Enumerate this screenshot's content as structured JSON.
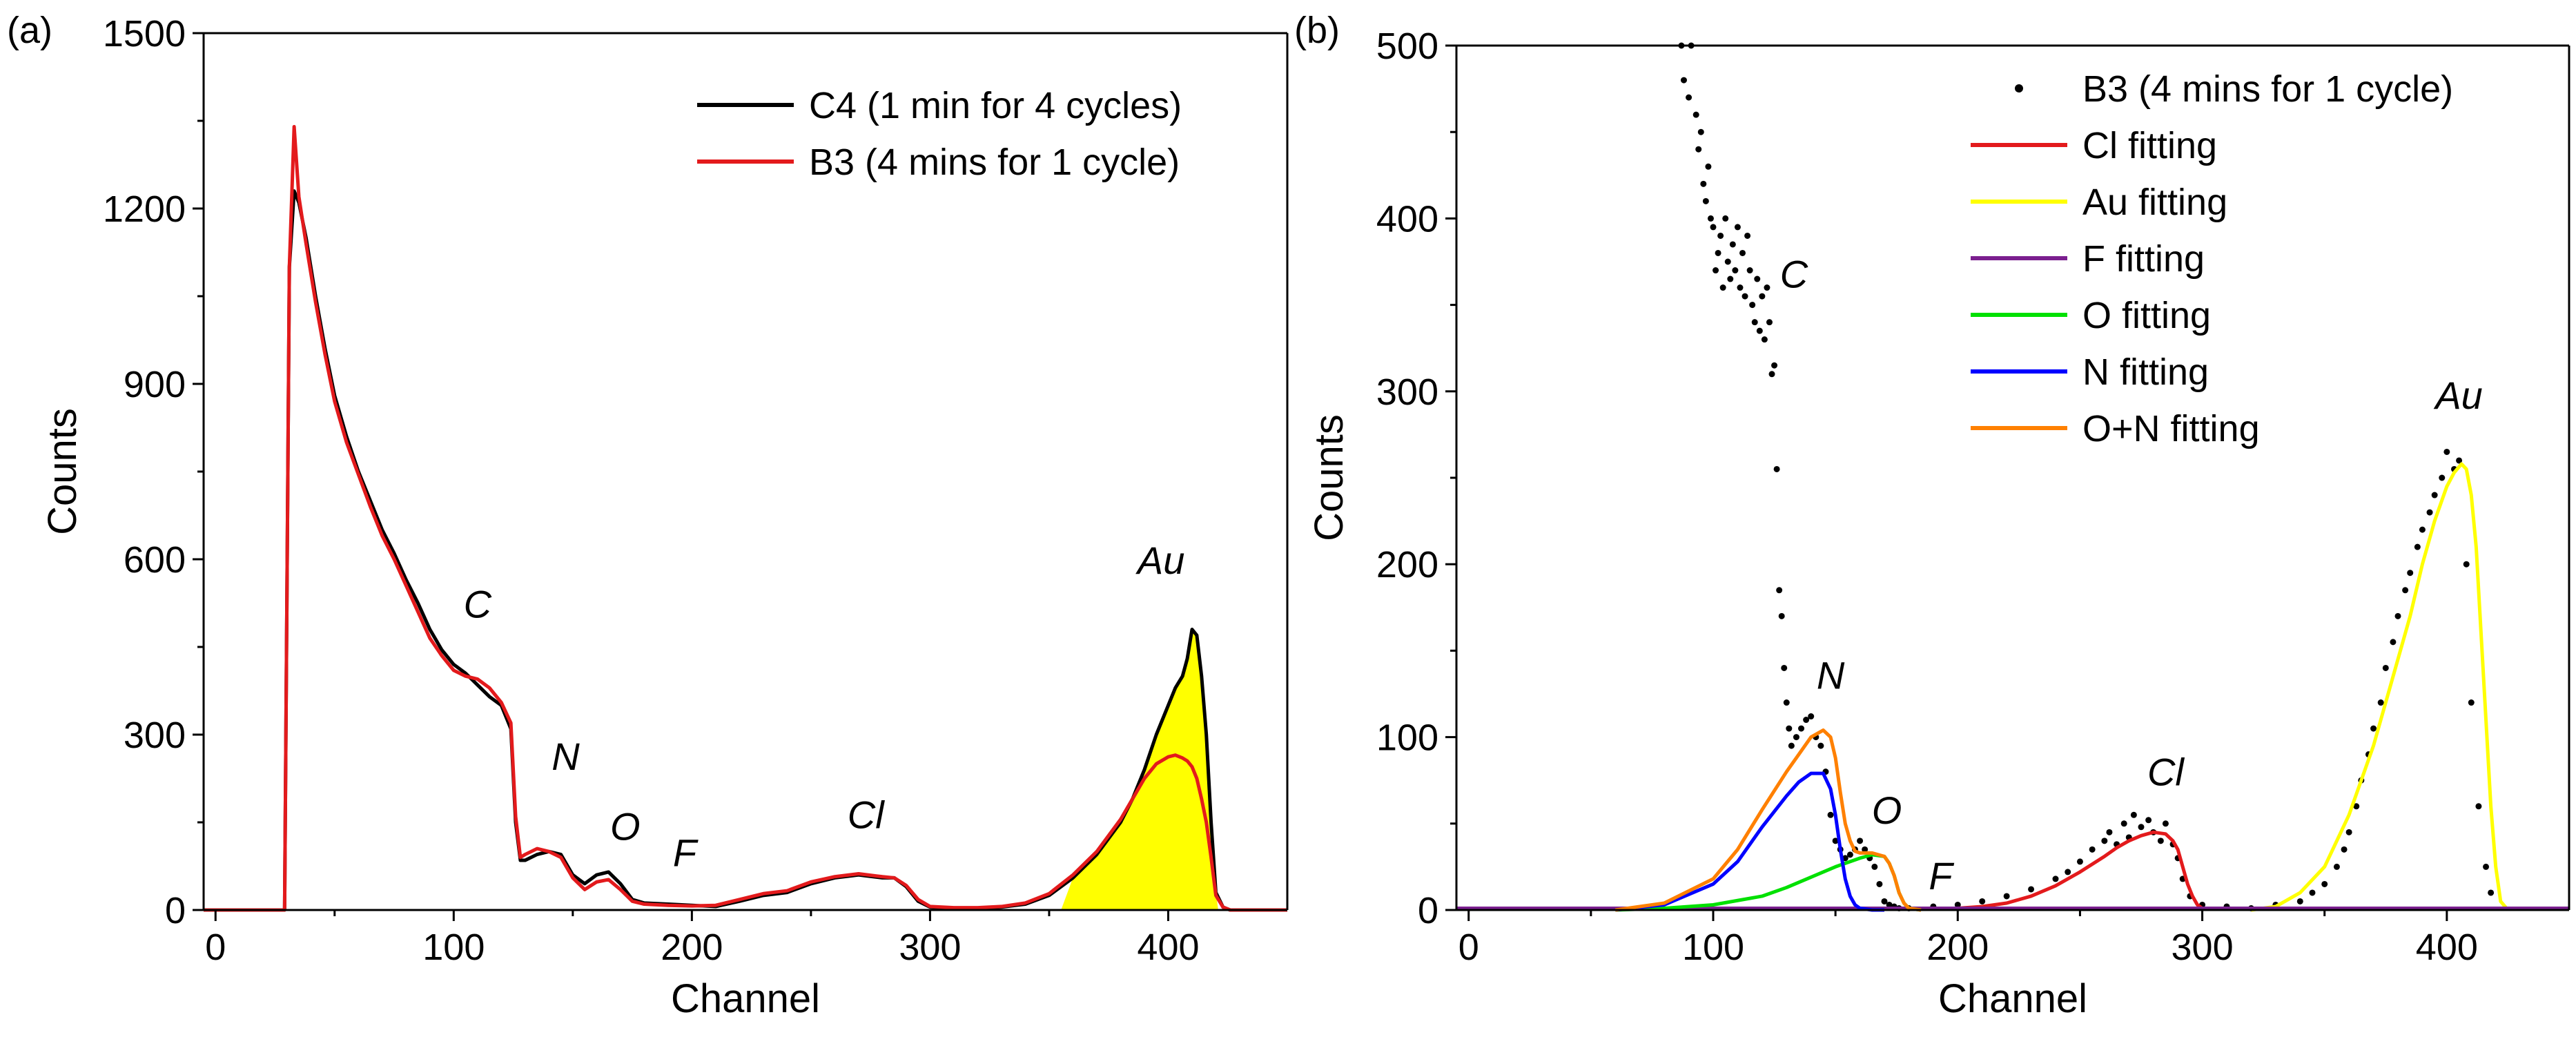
{
  "figure": {
    "label_a": "(a)",
    "label_b": "(b)"
  },
  "chart_data": [
    {
      "type": "line",
      "panel": "(a)",
      "xlabel": "Channel",
      "ylabel": "Counts",
      "xlim": [
        -5,
        450
      ],
      "ylim": [
        0,
        1500
      ],
      "xticks": [
        0,
        100,
        200,
        300,
        400
      ],
      "yticks": [
        0,
        300,
        600,
        900,
        1200,
        1500
      ],
      "legend_position": "top-right",
      "annotations": [
        {
          "text": "C",
          "x": 110,
          "y": 500
        },
        {
          "text": "N",
          "x": 147,
          "y": 240
        },
        {
          "text": "O",
          "x": 172,
          "y": 120
        },
        {
          "text": "F",
          "x": 197,
          "y": 75
        },
        {
          "text": "Cl",
          "x": 273,
          "y": 140
        },
        {
          "text": "Au",
          "x": 397,
          "y": 575
        }
      ],
      "series": [
        {
          "name": "C4 (1 min for 4 cycles)",
          "color": "#000000",
          "x": [
            -5,
            25,
            29,
            31,
            33,
            35,
            38,
            42,
            46,
            50,
            55,
            60,
            65,
            70,
            75,
            80,
            85,
            90,
            95,
            100,
            105,
            110,
            115,
            120,
            124,
            126,
            128,
            130,
            135,
            140,
            145,
            150,
            155,
            160,
            165,
            170,
            175,
            180,
            190,
            200,
            210,
            220,
            230,
            240,
            250,
            260,
            270,
            280,
            285,
            290,
            295,
            300,
            310,
            320,
            330,
            340,
            350,
            360,
            370,
            380,
            385,
            390,
            395,
            400,
            403,
            406,
            408,
            410,
            412,
            414,
            416,
            418,
            420,
            423,
            426,
            430,
            440,
            450
          ],
          "y": [
            0,
            0,
            0,
            1100,
            1230,
            1210,
            1150,
            1050,
            960,
            880,
            810,
            750,
            700,
            650,
            610,
            565,
            525,
            480,
            445,
            420,
            405,
            385,
            365,
            350,
            310,
            150,
            85,
            85,
            95,
            100,
            95,
            60,
            45,
            60,
            65,
            45,
            18,
            12,
            10,
            8,
            6,
            15,
            25,
            30,
            45,
            55,
            60,
            55,
            55,
            40,
            15,
            5,
            3,
            3,
            5,
            10,
            25,
            55,
            95,
            150,
            190,
            240,
            300,
            350,
            380,
            400,
            430,
            480,
            470,
            400,
            300,
            150,
            30,
            5,
            0,
            0,
            0,
            0
          ]
        },
        {
          "name": "B3 (4 mins for 1 cycle)",
          "color": "#e31a1c",
          "x": [
            -5,
            25,
            29,
            31,
            33,
            35,
            38,
            42,
            46,
            50,
            55,
            60,
            65,
            70,
            75,
            80,
            85,
            90,
            95,
            100,
            105,
            110,
            115,
            120,
            124,
            126,
            128,
            130,
            135,
            140,
            145,
            150,
            155,
            160,
            165,
            170,
            175,
            180,
            190,
            200,
            210,
            220,
            230,
            240,
            250,
            260,
            270,
            280,
            285,
            290,
            295,
            300,
            310,
            320,
            330,
            340,
            350,
            360,
            370,
            380,
            385,
            390,
            395,
            400,
            403,
            406,
            408,
            410,
            412,
            414,
            416,
            418,
            420,
            423,
            426,
            430,
            440,
            450
          ],
          "y": [
            0,
            0,
            0,
            1100,
            1340,
            1220,
            1140,
            1040,
            950,
            870,
            800,
            745,
            690,
            640,
            600,
            555,
            510,
            465,
            435,
            410,
            400,
            395,
            380,
            355,
            320,
            160,
            90,
            95,
            105,
            100,
            90,
            55,
            35,
            48,
            52,
            35,
            15,
            10,
            8,
            7,
            8,
            18,
            28,
            33,
            48,
            57,
            62,
            57,
            55,
            42,
            18,
            6,
            4,
            4,
            6,
            12,
            28,
            60,
            100,
            155,
            190,
            225,
            250,
            262,
            265,
            260,
            255,
            245,
            225,
            190,
            150,
            90,
            25,
            5,
            0,
            0,
            0,
            0
          ]
        }
      ],
      "fill": {
        "between": [
          "C4 (1 min for 4 cycles)",
          "baseline"
        ],
        "x_range": [
          355,
          421
        ],
        "color": "#ffff00"
      }
    },
    {
      "type": "scatter",
      "panel": "(b)",
      "xlabel": "Channel",
      "ylabel": "Counts",
      "xlim": [
        -5,
        450
      ],
      "ylim": [
        0,
        500
      ],
      "xticks": [
        0,
        100,
        200,
        300,
        400
      ],
      "yticks": [
        0,
        100,
        200,
        300,
        400,
        500
      ],
      "legend_position": "top-right",
      "annotations": [
        {
          "text": "C",
          "x": 133,
          "y": 360
        },
        {
          "text": "N",
          "x": 148,
          "y": 128
        },
        {
          "text": "O",
          "x": 171,
          "y": 50
        },
        {
          "text": "F",
          "x": 193,
          "y": 12
        },
        {
          "text": "Cl",
          "x": 285,
          "y": 72
        },
        {
          "text": "Au",
          "x": 405,
          "y": 290
        }
      ],
      "scatter": {
        "name": "B3 (4 mins for 1 cycle)",
        "color": "#000000",
        "x": [
          87,
          88,
          90,
          91,
          93,
          94,
          95,
          96,
          97,
          98,
          99,
          100,
          101,
          102,
          103,
          104,
          105,
          106,
          107,
          108,
          109,
          110,
          111,
          112,
          113,
          114,
          115,
          116,
          117,
          118,
          119,
          120,
          121,
          122,
          123,
          124,
          125,
          126,
          127,
          128,
          129,
          130,
          131,
          132,
          134,
          136,
          138,
          140,
          142,
          144,
          146,
          148,
          150,
          152,
          154,
          156,
          158,
          160,
          162,
          164,
          166,
          168,
          170,
          172,
          174,
          176,
          180,
          190,
          200,
          210,
          220,
          230,
          240,
          245,
          250,
          255,
          260,
          262,
          265,
          268,
          270,
          272,
          275,
          278,
          280,
          283,
          285,
          288,
          290,
          292,
          295,
          300,
          310,
          320,
          330,
          340,
          345,
          350,
          355,
          358,
          360,
          363,
          365,
          368,
          370,
          373,
          375,
          378,
          380,
          383,
          385,
          388,
          390,
          393,
          395,
          398,
          400,
          403,
          405,
          408,
          410,
          413,
          416,
          418
        ],
        "y": [
          500,
          480,
          470,
          500,
          460,
          440,
          450,
          420,
          410,
          430,
          400,
          395,
          370,
          380,
          390,
          360,
          400,
          375,
          365,
          385,
          370,
          395,
          360,
          380,
          355,
          390,
          370,
          350,
          340,
          365,
          335,
          355,
          330,
          360,
          340,
          310,
          315,
          255,
          185,
          170,
          140,
          120,
          105,
          95,
          100,
          105,
          110,
          112,
          100,
          95,
          80,
          55,
          40,
          35,
          30,
          32,
          35,
          40,
          35,
          30,
          25,
          15,
          5,
          3,
          2,
          1,
          1,
          2,
          3,
          5,
          8,
          12,
          18,
          22,
          28,
          35,
          40,
          45,
          38,
          50,
          42,
          55,
          48,
          52,
          45,
          40,
          50,
          38,
          30,
          18,
          8,
          3,
          2,
          1,
          3,
          5,
          10,
          15,
          25,
          35,
          45,
          60,
          75,
          90,
          105,
          120,
          140,
          155,
          170,
          185,
          195,
          210,
          220,
          230,
          240,
          250,
          265,
          255,
          260,
          200,
          120,
          60,
          25,
          10
        ]
      },
      "series": [
        {
          "name": "Cl fitting",
          "color": "#e31a1c",
          "x": [
            -5,
            200,
            210,
            220,
            230,
            240,
            250,
            260,
            265,
            270,
            275,
            280,
            285,
            288,
            290,
            292,
            294,
            296,
            298,
            300,
            310,
            330,
            360,
            400,
            450
          ],
          "y": [
            1,
            1,
            2,
            4,
            8,
            14,
            22,
            31,
            36,
            40,
            43,
            45,
            44,
            40,
            35,
            25,
            15,
            8,
            3,
            1,
            1,
            1,
            1,
            1,
            1
          ]
        },
        {
          "name": "Au fitting",
          "color": "#ffff00",
          "x": [
            320,
            330,
            340,
            350,
            360,
            370,
            380,
            385,
            390,
            395,
            400,
            403,
            406,
            408,
            410,
            412,
            414,
            416,
            418,
            420,
            422,
            425
          ],
          "y": [
            0,
            2,
            10,
            25,
            55,
            95,
            145,
            170,
            200,
            225,
            245,
            253,
            258,
            255,
            240,
            210,
            160,
            110,
            60,
            25,
            5,
            0
          ]
        },
        {
          "name": "F fitting",
          "color": "#7b1f8f",
          "x": [
            -5,
            450
          ],
          "y": [
            1,
            1
          ]
        },
        {
          "name": "O fitting",
          "color": "#00e000",
          "x": [
            60,
            80,
            100,
            120,
            130,
            140,
            150,
            160,
            165,
            170,
            172,
            174,
            176,
            178,
            180,
            185
          ],
          "y": [
            0,
            1,
            3,
            8,
            13,
            19,
            25,
            30,
            32,
            31,
            27,
            20,
            10,
            4,
            1,
            0
          ]
        },
        {
          "name": "N fitting",
          "color": "#0000ff",
          "x": [
            60,
            80,
            100,
            110,
            120,
            130,
            135,
            140,
            145,
            148,
            150,
            152,
            154,
            156,
            158,
            160,
            165,
            170
          ],
          "y": [
            0,
            3,
            15,
            28,
            48,
            66,
            74,
            79,
            79,
            70,
            55,
            35,
            18,
            8,
            3,
            1,
            0,
            0
          ]
        },
        {
          "name": "O+N fitting",
          "color": "#ff8000",
          "x": [
            60,
            80,
            100,
            110,
            120,
            130,
            135,
            140,
            145,
            148,
            150,
            152,
            154,
            156,
            158,
            160,
            165,
            170,
            172,
            174,
            176,
            178,
            180,
            185
          ],
          "y": [
            0,
            4,
            18,
            35,
            58,
            80,
            90,
            100,
            104,
            100,
            88,
            68,
            50,
            40,
            34,
            33,
            33,
            31,
            27,
            20,
            10,
            4,
            1,
            0
          ]
        }
      ]
    }
  ]
}
